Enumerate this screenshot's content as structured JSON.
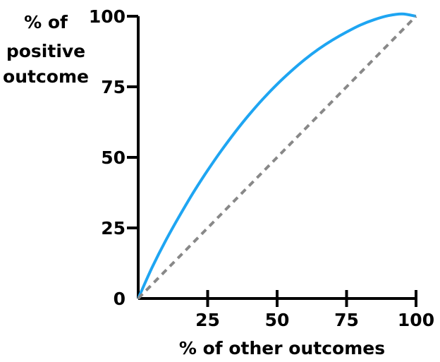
{
  "chart_data": {
    "type": "line",
    "title": "",
    "xlabel": "% of other outcomes",
    "ylabel": [
      "% of",
      "positive",
      "outcome"
    ],
    "xlim": [
      0,
      100
    ],
    "ylim": [
      0,
      100
    ],
    "x_ticks": [
      25,
      50,
      75,
      100
    ],
    "y_ticks": [
      0,
      25,
      50,
      75,
      100
    ],
    "grid": false,
    "legend": "none",
    "series": [
      {
        "style": "solid",
        "color": "#1EA5F2",
        "x": [
          0,
          5,
          10,
          15,
          20,
          25,
          30,
          35,
          40,
          45,
          50,
          55,
          60,
          65,
          70,
          75,
          80,
          85,
          90,
          95,
          100
        ],
        "y": [
          0,
          11,
          20.7,
          29.5,
          37.8,
          45.4,
          52.5,
          59.1,
          65.2,
          70.8,
          75.9,
          80.5,
          84.7,
          88.4,
          91.6,
          94.4,
          96.9,
          98.8,
          100.2,
          100.8,
          100
        ]
      },
      {
        "style": "dashed",
        "color": "#888888",
        "x": [
          0,
          100
        ],
        "y": [
          0,
          100
        ]
      }
    ]
  }
}
